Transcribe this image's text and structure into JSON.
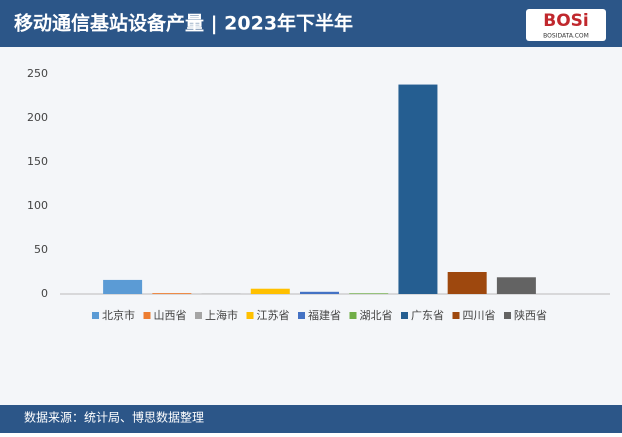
{
  "header": {
    "logo": "BOSi",
    "logo_sub": "BOSIDATA.COM"
  },
  "chart_data": {
    "type": "bar",
    "title": "移动通信基站设备产量 | 2023年下半年",
    "categories": [
      "北京市",
      "山西省",
      "上海市",
      "江苏省",
      "福建省",
      "湖北省",
      "广东省",
      "四川省",
      "陕西省"
    ],
    "values": [
      16,
      1,
      0.5,
      6,
      2.5,
      0.8,
      238,
      25,
      19
    ],
    "colors": [
      "#5b9bd5",
      "#ed7d31",
      "#a5a5a5",
      "#ffc000",
      "#4472c4",
      "#70ad47",
      "#255e91",
      "#9e480e",
      "#636363"
    ],
    "ylim": [
      0,
      250
    ],
    "yticks": [
      0,
      50,
      100,
      150,
      200,
      250
    ],
    "grid": false,
    "legend": "bottom"
  },
  "footer": {
    "source": "数据来源：统计局、博思数据整理"
  }
}
